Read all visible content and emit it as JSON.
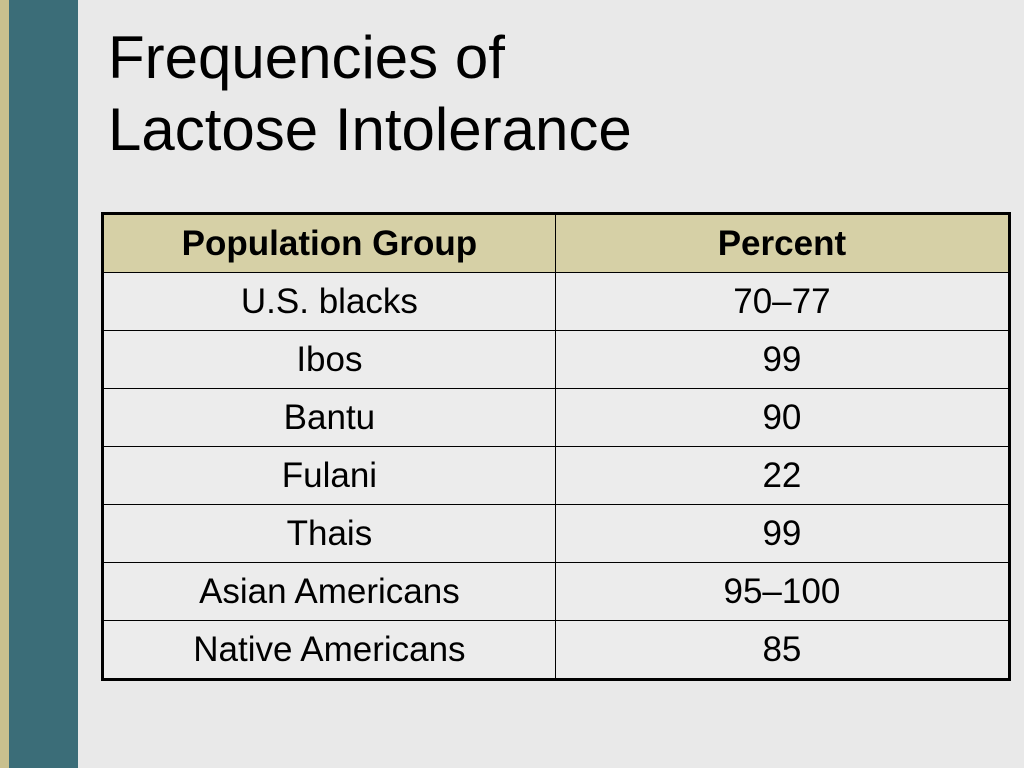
{
  "slide": {
    "title_lines": [
      "Frequencies of",
      "Lactose Intolerance"
    ]
  },
  "table": {
    "headers": [
      "Population Group",
      "Percent"
    ],
    "rows": [
      [
        "U.S. blacks",
        "70–77"
      ],
      [
        "Ibos",
        "99"
      ],
      [
        "Bantu",
        "90"
      ],
      [
        "Fulani",
        "22"
      ],
      [
        "Thais",
        "99"
      ],
      [
        "Asian Americans",
        "95–100"
      ],
      [
        "Native Americans",
        "85"
      ]
    ]
  },
  "colors": {
    "background": "#e9e9e9",
    "accent_teal": "#3b6d78",
    "accent_tan": "#c8c08e",
    "header_fill": "#d6d0a6"
  }
}
